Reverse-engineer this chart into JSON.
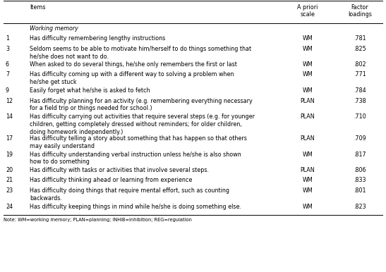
{
  "header_col1": "Items",
  "header_col2": "A priori\nscale",
  "header_col3": "Factor\nloadings",
  "section": "Working memory",
  "rows": [
    {
      "num": "1",
      "text": "Has difficulty remembering lengthy instructions",
      "scale": "WM",
      "loading": ".781"
    },
    {
      "num": "3",
      "text": "Seldom seems to be able to motivate him/herself to do things something that\nhe/she does not want to do.",
      "scale": "WM",
      "loading": ".825"
    },
    {
      "num": "6",
      "text": "When asked to do several things, he/she only remembers the first or last",
      "scale": "WM",
      "loading": ".802"
    },
    {
      "num": "7",
      "text": "Has difficulty coming up with a different way to solving a problem when\nhe/she get stuck",
      "scale": "WM",
      "loading": ".771"
    },
    {
      "num": "9",
      "text": "Easily forget what he/she is asked to fetch",
      "scale": "WM",
      "loading": ".784"
    },
    {
      "num": "12",
      "text": "Has difficulty planning for an activity (e.g. remembering everything necessary\nfor a field trip or things needed for school.)",
      "scale": "PLAN",
      "loading": ".738"
    },
    {
      "num": "14",
      "text": "Has difficulty carrying out activities that require several steps (e.g. for younger\nchildren, getting completely dressed without reminders; for older children,\ndoing homework independently.)",
      "scale": "PLAN",
      "loading": ".710"
    },
    {
      "num": "17",
      "text": "Has difficulty telling a story about something that has happen so that others\nmay easily understand",
      "scale": "PLAN",
      "loading": ".709"
    },
    {
      "num": "19",
      "text": "Has difficulty understanding verbal instruction unless he/she is also shown\nhow to do something",
      "scale": "WM",
      "loading": ".817"
    },
    {
      "num": "20",
      "text": "Has difficulty with tasks or activities that involve several steps.",
      "scale": "PLAN",
      "loading": ".806"
    },
    {
      "num": "21",
      "text": "Has difficulty thinking ahead or learning from experience",
      "scale": "WM",
      "loading": ".833"
    },
    {
      "num": "23",
      "text": "Has difficulty doing things that require mental effort, such as counting\nbackwards.",
      "scale": "WM",
      "loading": ".801"
    },
    {
      "num": "24",
      "text": "Has difficulty keeping things in mind while he/she is doing something else.",
      "scale": "WM",
      "loading": ".823"
    }
  ],
  "note": "Note: WM=working memory; PLAN=planning; INHIB=inhibition; REG=regulation",
  "bg_color": "#ffffff",
  "text_color": "#000000",
  "line_color": "#000000",
  "font_size": 5.8,
  "header_font_size": 5.8
}
